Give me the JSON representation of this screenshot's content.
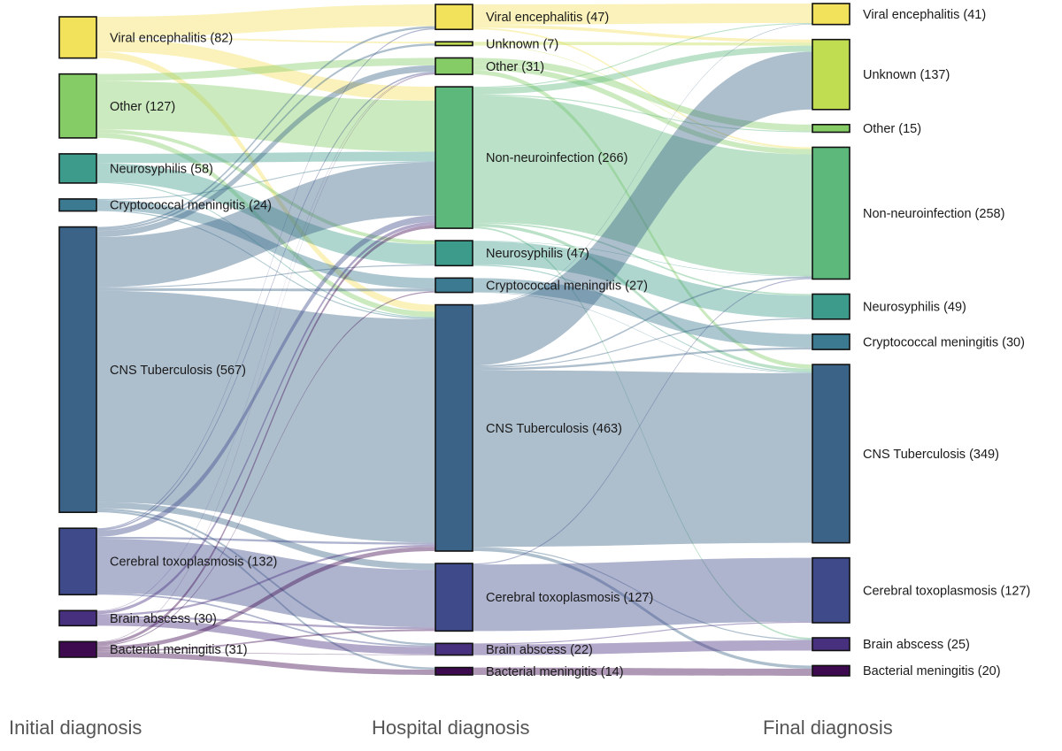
{
  "chart_data": {
    "type": "sankey",
    "stages": [
      "Initial diagnosis",
      "Hospital diagnosis",
      "Final diagnosis"
    ],
    "categories": {
      "Viral encephalitis": "#f2e15a",
      "Unknown": "#c0dd52",
      "Other": "#86cc66",
      "Non-neuroinfection": "#5db87b",
      "Neurosyphilis": "#3d9b8b",
      "Cryptococcal meningitis": "#3b7a91",
      "CNS Tuberculosis": "#3b6388",
      "Cerebral toxoplasmosis": "#3e4a8a",
      "Brain abscess": "#47307e",
      "Bacterial meningitis": "#3d0a50"
    },
    "nodes": [
      {
        "stage": 0,
        "name": "Viral encephalitis",
        "value": 82,
        "label": "Viral encephalitis (82)"
      },
      {
        "stage": 0,
        "name": "Other",
        "value": 127,
        "label": "Other (127)"
      },
      {
        "stage": 0,
        "name": "Neurosyphilis",
        "value": 58,
        "label": "Neurosyphilis (58)"
      },
      {
        "stage": 0,
        "name": "Cryptococcal meningitis",
        "value": 24,
        "label": "Cryptococcal meningitis (24)"
      },
      {
        "stage": 0,
        "name": "CNS Tuberculosis",
        "value": 567,
        "label": "CNS Tuberculosis (567)"
      },
      {
        "stage": 0,
        "name": "Cerebral toxoplasmosis",
        "value": 132,
        "label": "Cerebral toxoplasmosis (132)"
      },
      {
        "stage": 0,
        "name": "Brain abscess",
        "value": 30,
        "label": "Brain abscess (30)"
      },
      {
        "stage": 0,
        "name": "Bacterial meningitis",
        "value": 31,
        "label": "Bacterial meningitis (31)"
      },
      {
        "stage": 1,
        "name": "Viral encephalitis",
        "value": 47,
        "label": "Viral encephalitis (47)"
      },
      {
        "stage": 1,
        "name": "Unknown",
        "value": 7,
        "label": "Unknown (7)"
      },
      {
        "stage": 1,
        "name": "Other",
        "value": 31,
        "label": "Other (31)"
      },
      {
        "stage": 1,
        "name": "Non-neuroinfection",
        "value": 266,
        "label": "Non-neuroinfection (266)"
      },
      {
        "stage": 1,
        "name": "Neurosyphilis",
        "value": 47,
        "label": "Neurosyphilis (47)"
      },
      {
        "stage": 1,
        "name": "Cryptococcal meningitis",
        "value": 27,
        "label": "Cryptococcal meningitis (27)"
      },
      {
        "stage": 1,
        "name": "CNS Tuberculosis",
        "value": 463,
        "label": "CNS Tuberculosis (463)"
      },
      {
        "stage": 1,
        "name": "Cerebral toxoplasmosis",
        "value": 127,
        "label": "Cerebral toxoplasmosis (127)"
      },
      {
        "stage": 1,
        "name": "Brain abscess",
        "value": 22,
        "label": "Brain abscess (22)"
      },
      {
        "stage": 1,
        "name": "Bacterial meningitis",
        "value": 14,
        "label": "Bacterial meningitis (14)"
      },
      {
        "stage": 2,
        "name": "Viral encephalitis",
        "value": 41,
        "label": "Viral encephalitis (41)"
      },
      {
        "stage": 2,
        "name": "Unknown",
        "value": 137,
        "label": "Unknown (137)"
      },
      {
        "stage": 2,
        "name": "Other",
        "value": 15,
        "label": "Other (15)"
      },
      {
        "stage": 2,
        "name": "Non-neuroinfection",
        "value": 258,
        "label": "Non-neuroinfection (258)"
      },
      {
        "stage": 2,
        "name": "Neurosyphilis",
        "value": 49,
        "label": "Neurosyphilis (49)"
      },
      {
        "stage": 2,
        "name": "Cryptococcal meningitis",
        "value": 30,
        "label": "Cryptococcal meningitis (30)"
      },
      {
        "stage": 2,
        "name": "CNS Tuberculosis",
        "value": 349,
        "label": "CNS Tuberculosis (349)"
      },
      {
        "stage": 2,
        "name": "Cerebral toxoplasmosis",
        "value": 127,
        "label": "Cerebral toxoplasmosis (127)"
      },
      {
        "stage": 2,
        "name": "Brain abscess",
        "value": 25,
        "label": "Brain abscess (25)"
      },
      {
        "stage": 2,
        "name": "Bacterial meningitis",
        "value": 20,
        "label": "Bacterial meningitis (20)"
      }
    ],
    "links_initial_to_hospital": [
      [
        "Viral encephalitis",
        "Viral encephalitis",
        40
      ],
      [
        "Viral encephalitis",
        "Non-neuroinfection",
        26
      ],
      [
        "Viral encephalitis",
        "Unknown",
        3
      ],
      [
        "Viral encephalitis",
        "CNS Tuberculosis",
        13
      ],
      [
        "Other",
        "Other",
        14
      ],
      [
        "Other",
        "Non-neuroinfection",
        96
      ],
      [
        "Other",
        "Neurosyphilis",
        7
      ],
      [
        "Other",
        "CNS Tuberculosis",
        10
      ],
      [
        "Neurosyphilis",
        "Neurosyphilis",
        38
      ],
      [
        "Neurosyphilis",
        "Non-neuroinfection",
        18
      ],
      [
        "Neurosyphilis",
        "CNS Tuberculosis",
        2
      ],
      [
        "Cryptococcal meningitis",
        "Cryptococcal meningitis",
        20
      ],
      [
        "Cryptococcal meningitis",
        "Non-neuroinfection",
        2
      ],
      [
        "Cryptococcal meningitis",
        "CNS Tuberculosis",
        2
      ],
      [
        "CNS Tuberculosis",
        "Viral encephalitis",
        4
      ],
      [
        "CNS Tuberculosis",
        "Unknown",
        4
      ],
      [
        "CNS Tuberculosis",
        "Other",
        12
      ],
      [
        "CNS Tuberculosis",
        "Non-neuroinfection",
        100
      ],
      [
        "CNS Tuberculosis",
        "Neurosyphilis",
        2
      ],
      [
        "CNS Tuberculosis",
        "Cryptococcal meningitis",
        5
      ],
      [
        "CNS Tuberculosis",
        "CNS Tuberculosis",
        420
      ],
      [
        "CNS Tuberculosis",
        "Cerebral toxoplasmosis",
        12
      ],
      [
        "CNS Tuberculosis",
        "Brain abscess",
        4
      ],
      [
        "CNS Tuberculosis",
        "Bacterial meningitis",
        4
      ],
      [
        "Cerebral toxoplasmosis",
        "Viral encephalitis",
        2
      ],
      [
        "Cerebral toxoplasmosis",
        "Other",
        3
      ],
      [
        "Cerebral toxoplasmosis",
        "Non-neuroinfection",
        12
      ],
      [
        "Cerebral toxoplasmosis",
        "CNS Tuberculosis",
        4
      ],
      [
        "Cerebral toxoplasmosis",
        "Cerebral toxoplasmosis",
        108
      ],
      [
        "Cerebral toxoplasmosis",
        "Brain abscess",
        3
      ],
      [
        "Brain abscess",
        "Other",
        1
      ],
      [
        "Brain abscess",
        "Non-neuroinfection",
        6
      ],
      [
        "Brain abscess",
        "CNS Tuberculosis",
        4
      ],
      [
        "Brain abscess",
        "Cerebral toxoplasmosis",
        4
      ],
      [
        "Brain abscess",
        "Brain abscess",
        15
      ],
      [
        "Bacterial meningitis",
        "Other",
        1
      ],
      [
        "Bacterial meningitis",
        "Non-neuroinfection",
        6
      ],
      [
        "Bacterial meningitis",
        "CNS Tuberculosis",
        8
      ],
      [
        "Bacterial meningitis",
        "Cerebral toxoplasmosis",
        3
      ],
      [
        "Bacterial meningitis",
        "Cryptococcal meningitis",
        2
      ],
      [
        "Bacterial meningitis",
        "Bacterial meningitis",
        10
      ],
      [
        "Bacterial meningitis",
        "Brain abscess",
        1
      ]
    ],
    "links_hospital_to_final": [
      [
        "Viral encephalitis",
        "Viral encephalitis",
        38
      ],
      [
        "Viral encephalitis",
        "Unknown",
        6
      ],
      [
        "Viral encephalitis",
        "Non-neuroinfection",
        3
      ],
      [
        "Unknown",
        "Unknown",
        6
      ],
      [
        "Unknown",
        "Non-neuroinfection",
        1
      ],
      [
        "Other",
        "Other",
        13
      ],
      [
        "Other",
        "Non-neuroinfection",
        10
      ],
      [
        "Other",
        "CNS Tuberculosis",
        8
      ],
      [
        "Non-neuroinfection",
        "Viral encephalitis",
        2
      ],
      [
        "Non-neuroinfection",
        "Unknown",
        12
      ],
      [
        "Non-neuroinfection",
        "Other",
        2
      ],
      [
        "Non-neuroinfection",
        "Non-neuroinfection",
        238
      ],
      [
        "Non-neuroinfection",
        "Neurosyphilis",
        3
      ],
      [
        "Non-neuroinfection",
        "CNS Tuberculosis",
        6
      ],
      [
        "Non-neuroinfection",
        "Brain abscess",
        3
      ],
      [
        "Neurosyphilis",
        "Non-neuroinfection",
        1
      ],
      [
        "Neurosyphilis",
        "Neurosyphilis",
        44
      ],
      [
        "Neurosyphilis",
        "CNS Tuberculosis",
        2
      ],
      [
        "Cryptococcal meningitis",
        "Cryptococcal meningitis",
        26
      ],
      [
        "Cryptococcal meningitis",
        "CNS Tuberculosis",
        1
      ],
      [
        "CNS Tuberculosis",
        "Viral encephalitis",
        1
      ],
      [
        "CNS Tuberculosis",
        "Unknown",
        113
      ],
      [
        "CNS Tuberculosis",
        "Non-neuroinfection",
        3
      ],
      [
        "CNS Tuberculosis",
        "Neurosyphilis",
        2
      ],
      [
        "CNS Tuberculosis",
        "Cryptococcal meningitis",
        4
      ],
      [
        "CNS Tuberculosis",
        "CNS Tuberculosis",
        332
      ],
      [
        "CNS Tuberculosis",
        "Brain abscess",
        2
      ],
      [
        "CNS Tuberculosis",
        "Bacterial meningitis",
        6
      ],
      [
        "Cerebral toxoplasmosis",
        "Non-neuroinfection",
        2
      ],
      [
        "Cerebral toxoplasmosis",
        "Cerebral toxoplasmosis",
        125
      ],
      [
        "Brain abscess",
        "Brain abscess",
        20
      ],
      [
        "Brain abscess",
        "Cerebral toxoplasmosis",
        2
      ],
      [
        "Bacterial meningitis",
        "Bacterial meningitis",
        14
      ]
    ]
  }
}
